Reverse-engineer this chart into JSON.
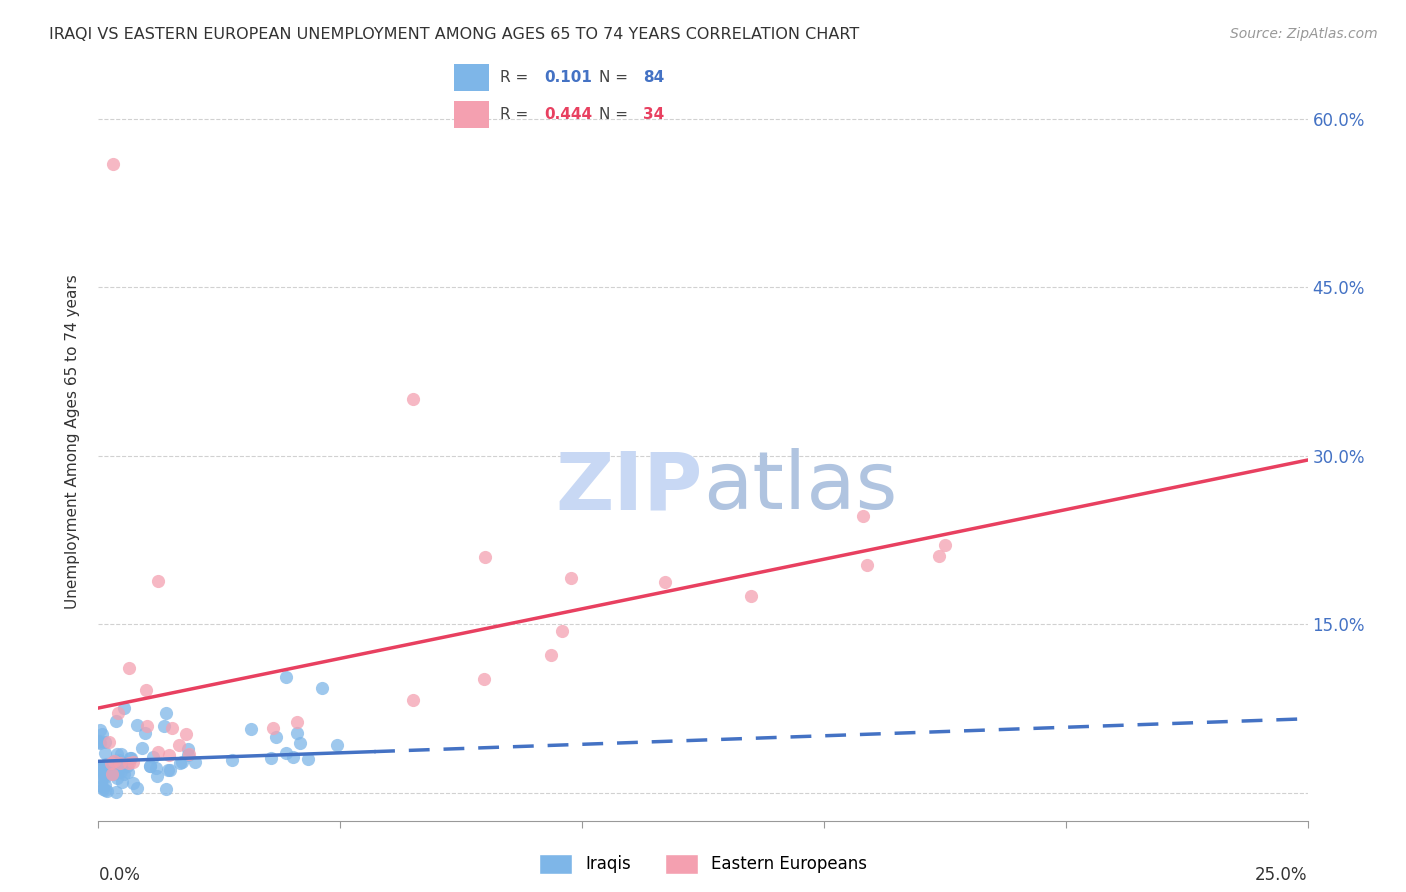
{
  "title": "IRAQI VS EASTERN EUROPEAN UNEMPLOYMENT AMONG AGES 65 TO 74 YEARS CORRELATION CHART",
  "source": "Source: ZipAtlas.com",
  "ylabel": "Unemployment Among Ages 65 to 74 years",
  "xmin": 0.0,
  "xmax": 0.25,
  "ymin": -0.025,
  "ymax": 0.65,
  "iraqi_R": 0.101,
  "iraqi_N": 84,
  "eastern_R": 0.444,
  "eastern_N": 34,
  "iraqi_color": "#7EB6E8",
  "eastern_color": "#F4A0B0",
  "trendline_iraqi_color": "#4472C4",
  "trendline_eastern_color": "#E84060",
  "watermark_zip_color": "#C8D8F0",
  "watermark_atlas_color": "#B0C8E8",
  "background_color": "#FFFFFF",
  "grid_color": "#CCCCCC",
  "ytick_values": [
    0.0,
    0.15,
    0.3,
    0.45,
    0.6
  ]
}
